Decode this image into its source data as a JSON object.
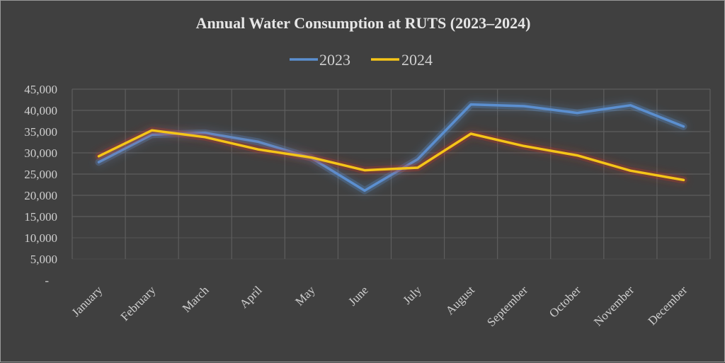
{
  "chart_data": {
    "type": "line",
    "title": "Annual Water Consumption at RUTS (2023–2024)",
    "xlabel": "",
    "ylabel": "",
    "categories": [
      "January",
      "February",
      "March",
      "April",
      "May",
      "June",
      "July",
      "August",
      "September",
      "October",
      "November",
      "December"
    ],
    "series": [
      {
        "name": "2023",
        "color": "#5b8fd0",
        "values": [
          27800,
          34300,
          34700,
          32600,
          28800,
          21100,
          28500,
          41400,
          41000,
          39400,
          41200,
          36200
        ]
      },
      {
        "name": "2024",
        "color": "#f5c518",
        "values": [
          29200,
          35300,
          33700,
          30800,
          28900,
          25900,
          26500,
          34500,
          31600,
          29400,
          25800,
          23600
        ]
      }
    ],
    "ylim": [
      0,
      45000
    ],
    "yticks": [
      0,
      5000,
      10000,
      15000,
      20000,
      25000,
      30000,
      35000,
      40000,
      45000
    ],
    "ytick_labels": [
      "-",
      "5,000",
      "10,000",
      "15,000",
      "20,000",
      "25,000",
      "30,000",
      "35,000",
      "40,000",
      "45,000"
    ],
    "grid": true,
    "legend_position": "top-center",
    "background_color": "#404040"
  }
}
